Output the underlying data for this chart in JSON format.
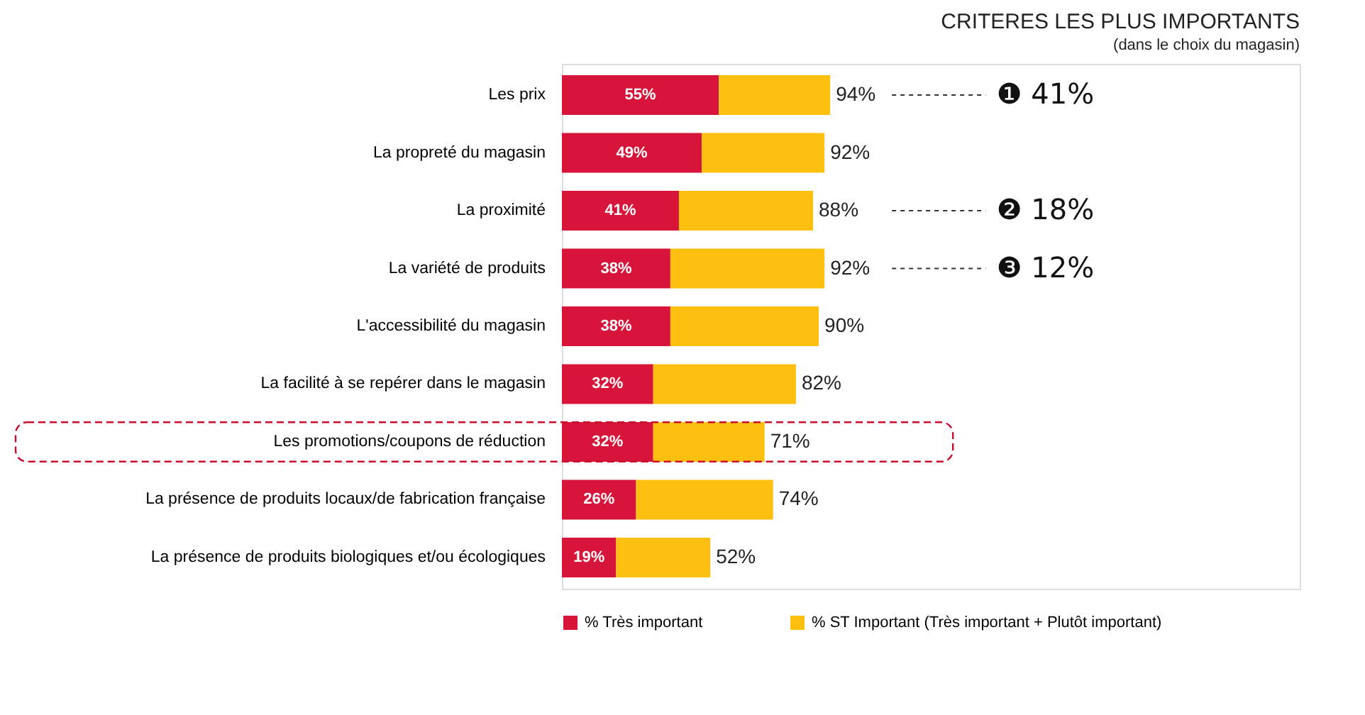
{
  "chart_data": {
    "type": "bar",
    "orientation": "horizontal",
    "stacked": true,
    "title": "CRITERES LES PLUS IMPORTANTS",
    "subtitle": "(dans le choix du magasin)",
    "categories": [
      "Les prix",
      "La propreté du magasin",
      "La proximité",
      "La variété de produits",
      "L'accessibilité du magasin",
      "La facilité à se repérer dans le magasin",
      "Les promotions/coupons de réduction",
      "La présence de produits locaux/de fabrication française",
      "La présence de produits biologiques et/ou écologiques"
    ],
    "series": [
      {
        "name": "% Très important",
        "color": "#d7153a",
        "values": [
          55,
          49,
          41,
          38,
          38,
          32,
          32,
          26,
          19
        ],
        "value_labels": [
          "55%",
          "49%",
          "41%",
          "38%",
          "38%",
          "32%",
          "32%",
          "26%",
          "19%"
        ]
      },
      {
        "name": "% ST Important (Très important + Plutôt important)",
        "color": "#fdc010",
        "values": [
          39,
          43,
          47,
          54,
          52,
          50,
          39,
          48,
          33
        ]
      }
    ],
    "totals": [
      "94%",
      "92%",
      "88%",
      "92%",
      "90%",
      "82%",
      "71%",
      "74%",
      "52%"
    ],
    "annotations": [
      "❶ 41%",
      "❷ 18%",
      "❸ 12%"
    ],
    "legend": "bottom",
    "grid": false
  }
}
